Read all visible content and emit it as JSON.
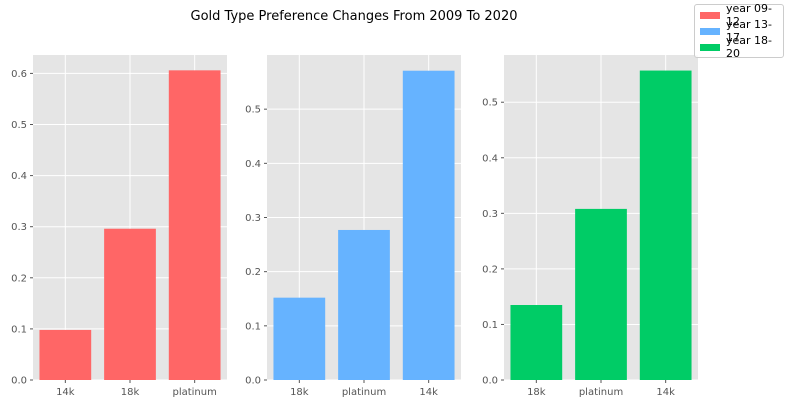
{
  "figure": {
    "title": "Gold Type Preference Changes From 2009 To 2020"
  },
  "legend": {
    "items": [
      {
        "label": "year 09-12",
        "color": "#ff6666"
      },
      {
        "label": "year 13-17",
        "color": "#66b3ff"
      },
      {
        "label": "year 18-20",
        "color": "#00cc66"
      }
    ]
  },
  "chart_data": [
    {
      "type": "bar",
      "categories": [
        "14k",
        "18k",
        "platinum"
      ],
      "values": [
        0.098,
        0.296,
        0.606
      ],
      "ylim": [
        0,
        0.636
      ],
      "yticks": [
        "0.0",
        "0.1",
        "0.2",
        "0.3",
        "0.4",
        "0.5",
        "0.6"
      ],
      "color": "#ff6666",
      "grid": true
    },
    {
      "type": "bar",
      "categories": [
        "18k",
        "platinum",
        "14k"
      ],
      "values": [
        0.152,
        0.277,
        0.571
      ],
      "ylim": [
        0,
        0.6
      ],
      "yticks": [
        "0.0",
        "0.1",
        "0.2",
        "0.3",
        "0.4",
        "0.5"
      ],
      "color": "#66b3ff",
      "grid": true
    },
    {
      "type": "bar",
      "categories": [
        "18k",
        "platinum",
        "14k"
      ],
      "values": [
        0.135,
        0.308,
        0.557
      ],
      "ylim": [
        0,
        0.585
      ],
      "yticks": [
        "0.0",
        "0.1",
        "0.2",
        "0.3",
        "0.4",
        "0.5"
      ],
      "color": "#00cc66",
      "grid": true
    }
  ]
}
